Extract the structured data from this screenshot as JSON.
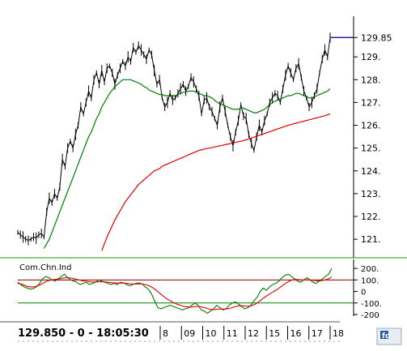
{
  "chart_data": [
    {
      "type": "line",
      "title": "",
      "ylim": [
        120.4,
        130.5
      ],
      "y_ticks": [
        "129.85",
        "129.",
        "128.",
        "127.",
        "126.",
        "125.",
        "124.",
        "123.",
        "122.",
        "121."
      ],
      "y_tick_values": [
        129.85,
        129,
        128,
        127,
        126,
        125,
        124,
        123,
        122,
        121
      ],
      "x_count": 120,
      "last_price": 129.85,
      "series": [
        {
          "values": [
            121.3,
            121.2,
            121.1,
            121.0,
            120.95,
            121.0,
            121.1,
            121.05,
            121.2,
            121.25,
            121.1,
            122.2,
            122.8,
            122.6,
            123.0,
            122.8,
            123.3,
            124.5,
            124.2,
            125.0,
            125.3,
            125.0,
            125.6,
            126.0,
            126.8,
            126.5,
            127.0,
            127.5,
            127.2,
            128.0,
            128.3,
            127.8,
            128.4,
            127.9,
            128.5,
            128.6,
            128.3,
            127.8,
            128.2,
            128.5,
            128.8,
            128.6,
            129.0,
            128.8,
            129.4,
            129.2,
            129.5,
            129.3,
            129.1,
            128.9,
            129.3,
            129.1,
            128.4,
            127.8,
            128.0,
            127.2,
            126.8,
            127.0,
            127.4,
            127.1,
            127.2,
            127.4,
            127.6,
            127.8,
            127.5,
            127.7,
            128.1,
            127.9,
            127.6,
            127.3,
            126.5,
            127.1,
            127.2,
            126.8,
            126.6,
            126.3,
            126.0,
            126.8,
            127.2,
            126.6,
            126.0,
            125.5,
            125.1,
            125.7,
            126.2,
            126.9,
            126.4,
            126.3,
            125.6,
            125.2,
            124.9,
            125.5,
            126.0,
            125.7,
            126.2,
            126.5,
            127.0,
            127.2,
            127.4,
            127.3,
            127.0,
            127.6,
            128.2,
            128.6,
            128.3,
            128.0,
            128.5,
            128.7,
            128.1,
            127.5,
            127.2,
            126.8,
            127.0,
            127.3,
            127.6,
            128.3,
            128.9,
            129.3,
            129.0,
            129.85
          ]
        },
        {
          "values": [
            null,
            null,
            null,
            null,
            null,
            null,
            null,
            null,
            null,
            null,
            120.6,
            120.8,
            121.0,
            121.3,
            121.6,
            121.9,
            122.2,
            122.5,
            122.8,
            123.1,
            123.4,
            123.7,
            124.0,
            124.3,
            124.6,
            124.9,
            125.2,
            125.5,
            125.7,
            126.0,
            126.3,
            126.5,
            126.8,
            127.0,
            127.2,
            127.4,
            127.55,
            127.7,
            127.8,
            127.9,
            128.0,
            128.0,
            128.0,
            128.0,
            127.95,
            127.9,
            127.85,
            127.8,
            127.7,
            127.65,
            127.55,
            127.5,
            127.45,
            127.4,
            127.35,
            127.35,
            127.3,
            127.3,
            127.3,
            127.3,
            127.3,
            127.35,
            127.4,
            127.45,
            127.45,
            127.5,
            127.5,
            127.5,
            127.45,
            127.4,
            127.35,
            127.3,
            127.3,
            127.25,
            127.2,
            127.1,
            127.0,
            126.95,
            126.9,
            126.85,
            126.8,
            126.75,
            126.7,
            126.7,
            126.7,
            126.75,
            126.75,
            126.7,
            126.65,
            126.6,
            126.55,
            126.55,
            126.6,
            126.65,
            126.7,
            126.8,
            126.9,
            127.0,
            127.05,
            127.1,
            127.15,
            127.2,
            127.25,
            127.3,
            127.3,
            127.35,
            127.4,
            127.4,
            127.35,
            127.3,
            127.25,
            127.2,
            127.2,
            127.25,
            127.3,
            127.35,
            127.4,
            127.45,
            127.5,
            127.6
          ]
        },
        {
          "values": [
            null,
            null,
            null,
            null,
            null,
            null,
            null,
            null,
            null,
            null,
            null,
            null,
            null,
            null,
            null,
            null,
            null,
            null,
            null,
            null,
            null,
            null,
            null,
            null,
            null,
            null,
            null,
            null,
            null,
            null,
            null,
            null,
            120.5,
            120.8,
            121.1,
            121.35,
            121.6,
            121.85,
            122.05,
            122.25,
            122.45,
            122.65,
            122.8,
            122.95,
            123.1,
            123.25,
            123.4,
            123.5,
            123.6,
            123.7,
            123.8,
            123.9,
            124.0,
            124.05,
            124.1,
            124.2,
            124.25,
            124.3,
            124.35,
            124.4,
            124.45,
            124.5,
            124.55,
            124.6,
            124.65,
            124.7,
            124.75,
            124.8,
            124.85,
            124.9,
            124.92,
            124.95,
            124.98,
            125.0,
            125.02,
            125.05,
            125.07,
            125.1,
            125.12,
            125.15,
            125.17,
            125.2,
            125.22,
            125.25,
            125.28,
            125.3,
            125.33,
            125.36,
            125.4,
            125.44,
            125.48,
            125.52,
            125.56,
            125.6,
            125.64,
            125.68,
            125.72,
            125.76,
            125.8,
            125.84,
            125.88,
            125.92,
            125.96,
            126.0,
            126.03,
            126.06,
            126.09,
            126.12,
            126.15,
            126.18,
            126.21,
            126.24,
            126.27,
            126.3,
            126.33,
            126.36,
            126.39,
            126.42,
            126.46,
            126.5
          ]
        }
      ],
      "colors": [
        "#000000",
        "#008000",
        "#e00000"
      ]
    },
    {
      "type": "line",
      "title": "Com.Chn.Ind",
      "ylim": [
        -200,
        250
      ],
      "y_ticks": [
        "200.",
        "100.",
        "0",
        "-100.",
        "-200"
      ],
      "y_tick_values": [
        200,
        100,
        0,
        -100,
        -200
      ],
      "reference_lines": [
        100,
        -100
      ],
      "series": [
        {
          "values": [
            80,
            60,
            40,
            30,
            20,
            25,
            40,
            70,
            110,
            130,
            120,
            100,
            90,
            110,
            130,
            150,
            120,
            100,
            90,
            80,
            60,
            70,
            80,
            60,
            70,
            80,
            100,
            90,
            80,
            70,
            60,
            70,
            60,
            80,
            75,
            60,
            50,
            60,
            70,
            75,
            65,
            40,
            20,
            -20,
            -80,
            -140,
            -150,
            -140,
            -130,
            -120,
            -130,
            -140,
            -150,
            -160,
            -150,
            -140,
            -120,
            -100,
            -120,
            -160,
            -170,
            -190,
            -170,
            -150,
            -120,
            -140,
            -160,
            -150,
            -120,
            -100,
            -90,
            -110,
            -130,
            -150,
            -140,
            -120,
            -80,
            -50,
            0,
            30,
            10,
            40,
            60,
            70,
            90,
            120,
            140,
            150,
            130,
            110,
            90,
            80,
            100,
            120,
            100,
            80,
            70,
            90,
            110,
            130,
            150,
            200
          ]
        },
        {
          "values": [
            70,
            65,
            55,
            45,
            40,
            40,
            45,
            55,
            70,
            85,
            95,
            100,
            105,
            108,
            112,
            118,
            120,
            118,
            112,
            105,
            98,
            92,
            88,
            85,
            82,
            82,
            84,
            85,
            83,
            80,
            77,
            75,
            73,
            73,
            72,
            70,
            67,
            65,
            65,
            66,
            65,
            60,
            52,
            40,
            22,
            0,
            -22,
            -45,
            -65,
            -80,
            -95,
            -108,
            -118,
            -126,
            -132,
            -135,
            -135,
            -132,
            -130,
            -134,
            -140,
            -148,
            -155,
            -158,
            -155,
            -152,
            -152,
            -152,
            -148,
            -140,
            -130,
            -125,
            -124,
            -126,
            -128,
            -125,
            -115,
            -100,
            -80,
            -58,
            -40,
            -22,
            -5,
            10,
            28,
            48,
            68,
            85,
            98,
            104,
            104,
            101,
            100,
            101,
            100,
            97,
            93,
            92,
            95,
            101,
            110,
            125
          ]
        }
      ],
      "colors": [
        "#008000",
        "#e00000"
      ]
    }
  ],
  "bottom_bar": {
    "quote": "129.850 - 0 - 18:05:30",
    "dates": [
      "8",
      "09",
      "10",
      "11",
      "12",
      "15",
      "16",
      "17",
      "18"
    ]
  }
}
